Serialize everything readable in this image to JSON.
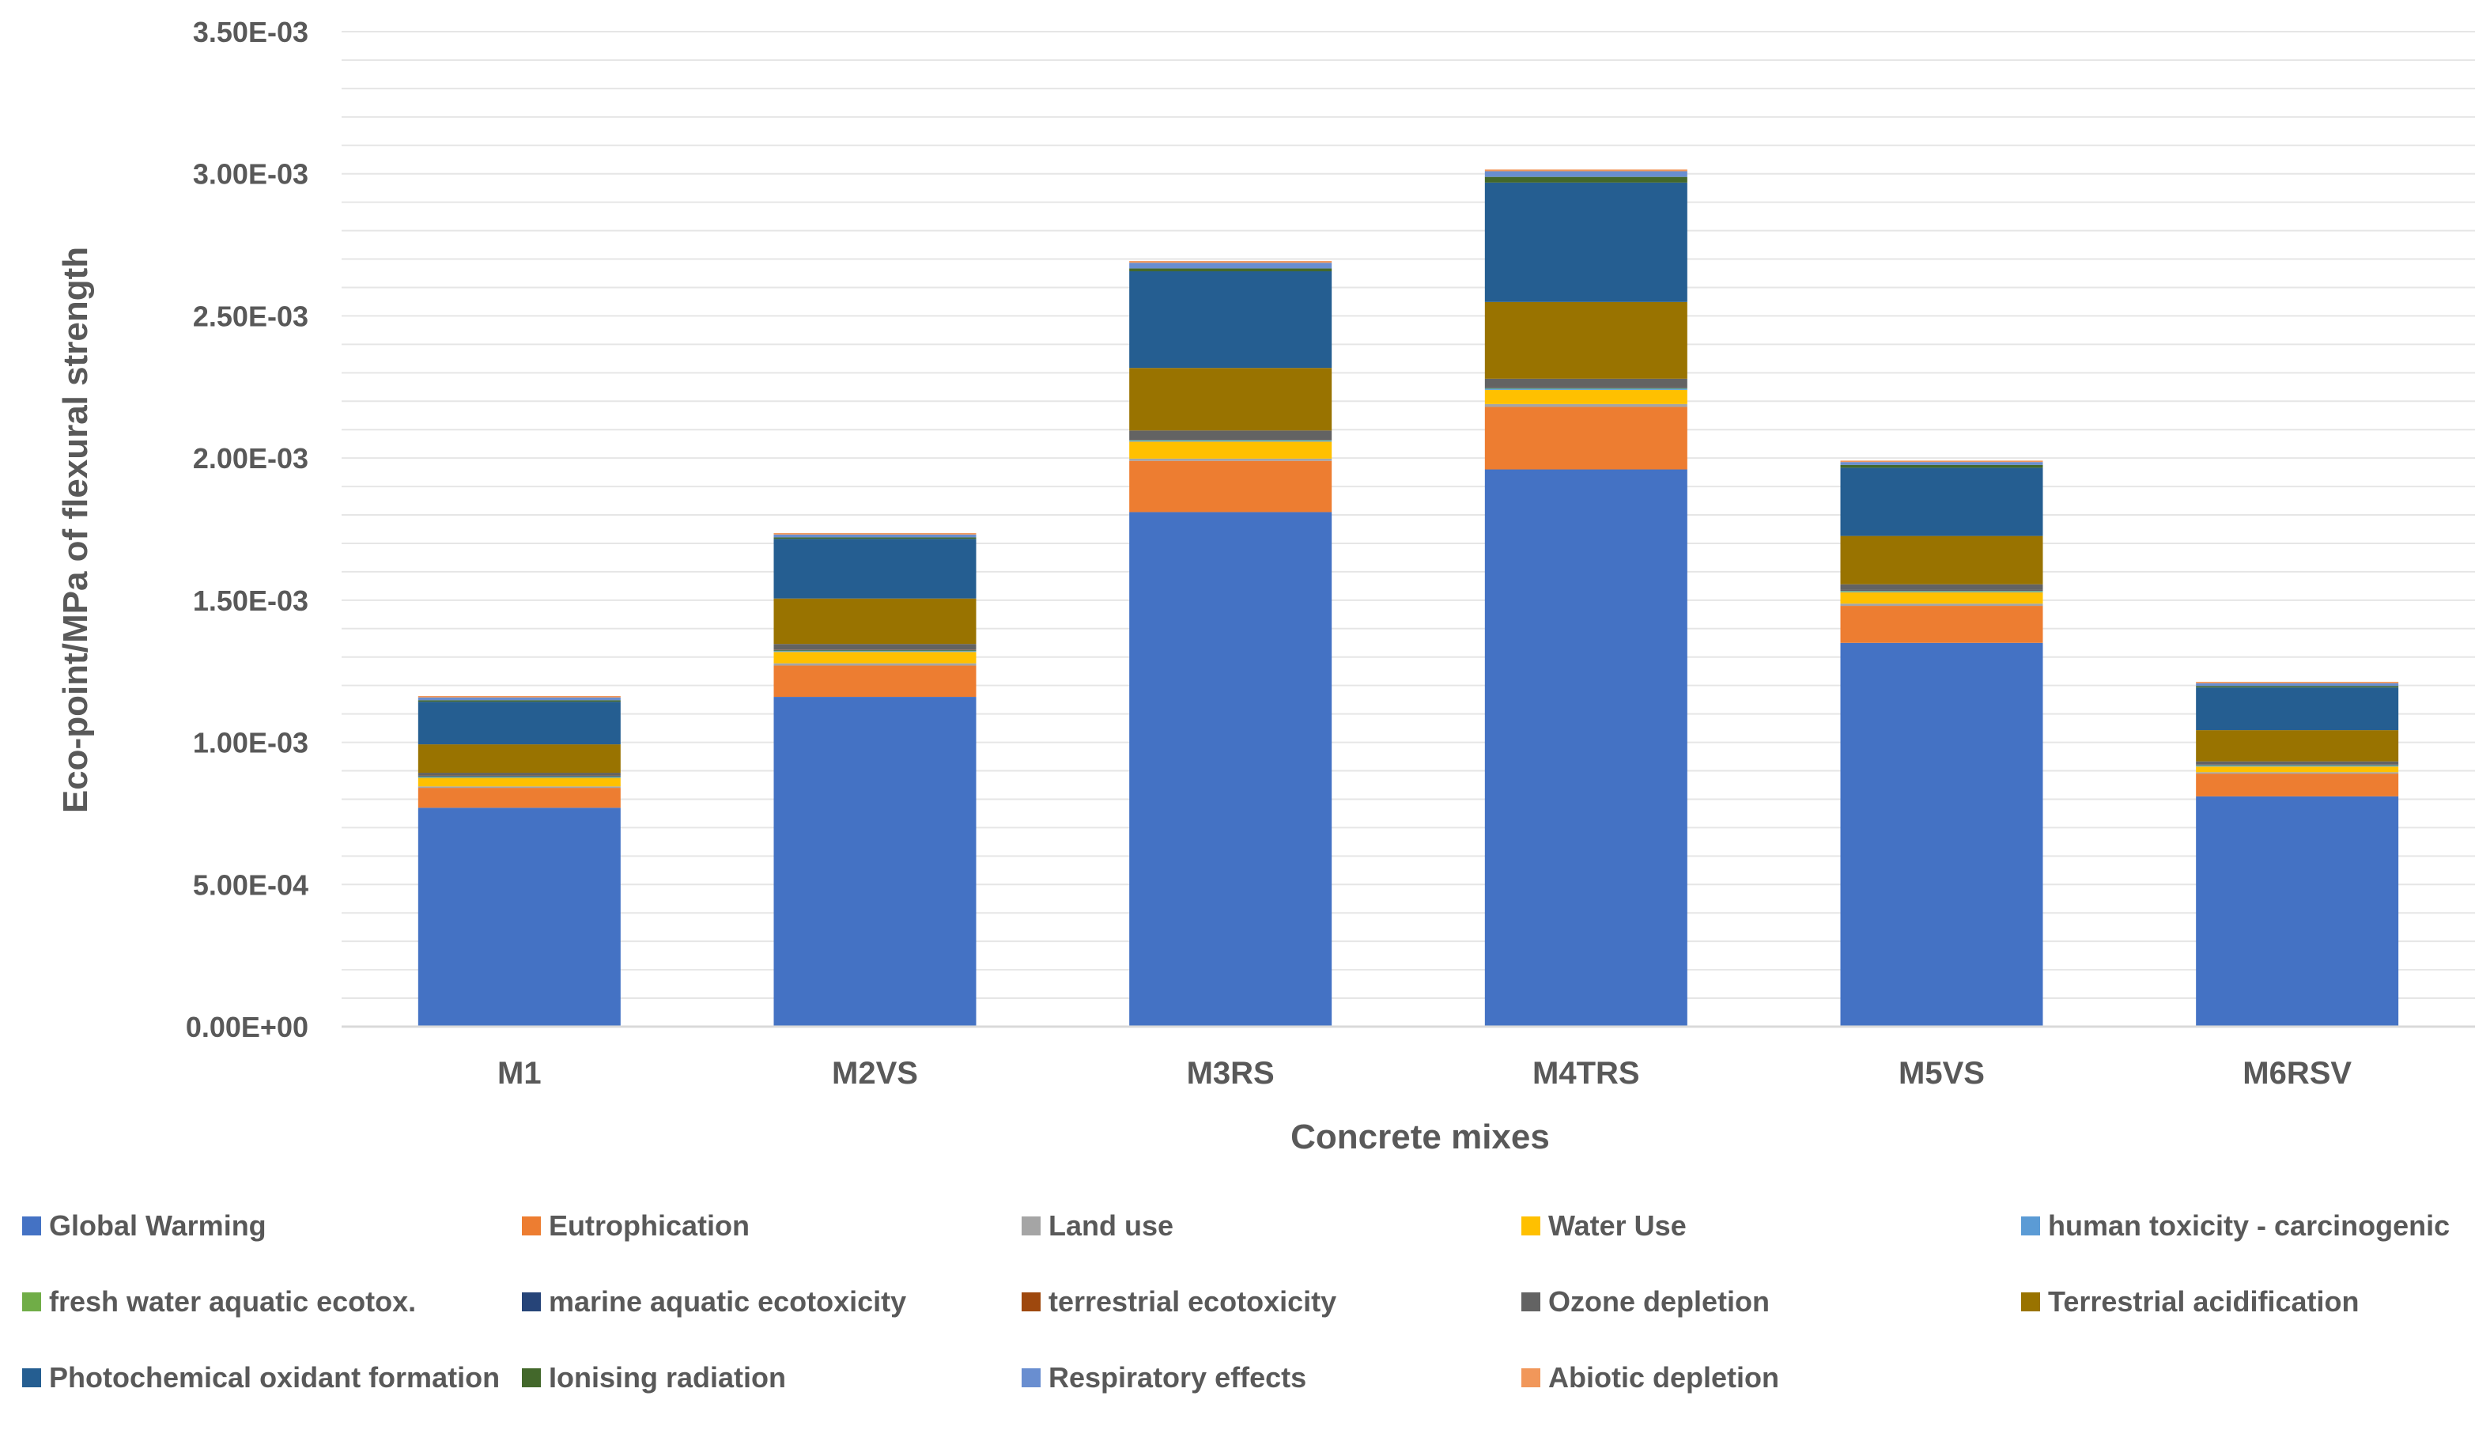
{
  "chart_data": {
    "type": "bar",
    "stacked": true,
    "title": "",
    "xlabel": "Concrete mixes",
    "ylabel": "Eco-point/MPa of flexural strength",
    "ylim": [
      0,
      0.0035
    ],
    "yticks": [
      0,
      0.0005,
      0.001,
      0.0015,
      0.002,
      0.0025,
      0.003,
      0.0035
    ],
    "ytick_labels": [
      "0.00E+00",
      "5.00E-04",
      "1.00E-03",
      "1.50E-03",
      "2.00E-03",
      "2.50E-03",
      "3.00E-03",
      "3.50E-03"
    ],
    "grid": true,
    "legend_position": "bottom",
    "categories": [
      "M1",
      "M2VS",
      "M3RS",
      "M4TRS",
      "M5VS",
      "M6RSV"
    ],
    "series": [
      {
        "name": "Global Warming",
        "color": "#4472C4",
        "values": [
          0.00077,
          0.00116,
          0.00181,
          0.00196,
          0.00135,
          0.00081
        ]
      },
      {
        "name": "Eutrophication",
        "color": "#ED7D31",
        "values": [
          7e-05,
          0.00011,
          0.00018,
          0.00022,
          0.00013,
          8e-05
        ]
      },
      {
        "name": "Land use",
        "color": "#A5A5A5",
        "values": [
          5e-06,
          8e-06,
          8e-06,
          1e-05,
          8e-06,
          5e-06
        ]
      },
      {
        "name": "Water Use",
        "color": "#FFC000",
        "values": [
          3e-05,
          4e-05,
          6e-05,
          5e-05,
          4e-05,
          2e-05
        ]
      },
      {
        "name": "human toxicity - carcinogenic",
        "color": "#5B9BD5",
        "values": [
          3e-06,
          3e-06,
          4e-06,
          4e-06,
          3e-06,
          3e-06
        ]
      },
      {
        "name": "fresh water aquatic ecotox.",
        "color": "#70AD47",
        "values": [
          2e-06,
          2e-06,
          2e-06,
          2e-06,
          2e-06,
          2e-06
        ]
      },
      {
        "name": "marine aquatic ecotoxicity",
        "color": "#264478",
        "values": [
          2e-06,
          2e-06,
          2e-06,
          2e-06,
          2e-06,
          2e-06
        ]
      },
      {
        "name": "terrestrial ecotoxicity",
        "color": "#9E480E",
        "values": [
          1e-06,
          1e-06,
          1e-06,
          1e-06,
          1e-06,
          1e-06
        ]
      },
      {
        "name": "Ozone depletion",
        "color": "#636363",
        "values": [
          1e-05,
          2e-05,
          3e-05,
          3e-05,
          2e-05,
          1e-05
        ]
      },
      {
        "name": "Terrestrial acidification",
        "color": "#997300",
        "values": [
          0.0001,
          0.00016,
          0.00022,
          0.00027,
          0.00017,
          0.00011
        ]
      },
      {
        "name": "Photochemical oxidant formation",
        "color": "#255E91",
        "values": [
          0.00015,
          0.00021,
          0.00034,
          0.00042,
          0.00024,
          0.00015
        ]
      },
      {
        "name": "Ionising radiation",
        "color": "#43682B",
        "values": [
          5e-06,
          5e-06,
          1e-05,
          2e-05,
          1e-05,
          5e-06
        ]
      },
      {
        "name": "Respiratory effects",
        "color": "#698ED0",
        "values": [
          1e-05,
          1e-05,
          2e-05,
          2e-05,
          1e-05,
          1e-05
        ]
      },
      {
        "name": "Abiotic depletion",
        "color": "#F1975A",
        "values": [
          5e-06,
          5e-06,
          6e-06,
          6e-06,
          5e-06,
          5e-06
        ]
      }
    ]
  }
}
